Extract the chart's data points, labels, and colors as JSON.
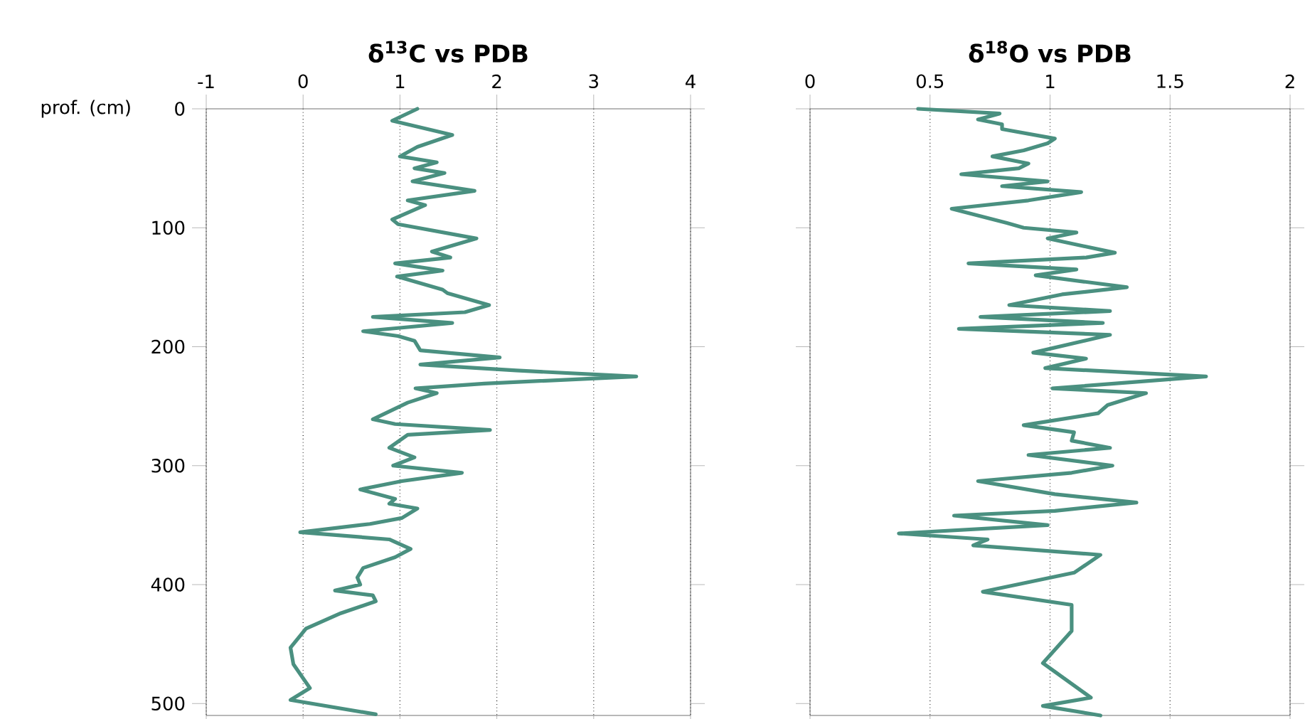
{
  "chart_data": [
    {
      "type": "line",
      "title": "δ$^{13}$C vs PDB",
      "ylabel": "prof. (cm)",
      "xlim": [
        -1,
        4
      ],
      "xticks": [
        -1,
        0,
        1,
        2,
        3,
        4
      ],
      "ylim": [
        510,
        0
      ],
      "yticks": [
        0,
        100,
        200,
        300,
        400,
        500
      ],
      "grid": "x",
      "series": [
        {
          "color": "#4a9080",
          "x": [
            1.18,
            0.92,
            1.54,
            1.18,
            1.0,
            1.38,
            1.15,
            1.46,
            1.13,
            1.77,
            1.08,
            1.26,
            0.92,
            0.98,
            1.79,
            1.33,
            1.52,
            0.95,
            1.44,
            0.97,
            1.44,
            1.49,
            1.92,
            1.67,
            0.72,
            1.54,
            1.02,
            0.62,
            0.98,
            1.15,
            1.21,
            2.03,
            1.21,
            2.2,
            3.44,
            1.87,
            1.16,
            1.38,
            1.08,
            0.72,
            0.95,
            1.93,
            1.08,
            0.89,
            1.15,
            0.93,
            1.64,
            1.02,
            0.59,
            0.95,
            0.89,
            1.18,
            1.02,
            0.69,
            -0.03,
            0.89,
            1.11,
            0.95,
            0.62,
            0.56,
            0.59,
            0.33,
            0.72,
            0.75,
            0.39,
            0.03,
            -0.13,
            -0.1,
            0.07,
            -0.13,
            0.75
          ],
          "values": [
            0,
            10,
            22,
            32,
            40,
            45,
            50,
            54,
            61,
            69,
            77,
            81,
            93,
            97,
            109,
            120,
            125,
            130,
            136,
            141,
            152,
            155,
            165,
            171,
            175,
            180,
            184,
            187,
            191,
            195,
            203,
            209,
            215,
            220,
            225,
            231,
            235,
            239,
            247,
            261,
            265,
            270,
            274,
            285,
            293,
            300,
            306,
            313,
            320,
            328,
            332,
            336,
            344,
            349,
            356,
            362,
            370,
            377,
            386,
            394,
            400,
            405,
            409,
            414,
            424,
            437,
            453,
            467,
            487,
            497,
            509
          ]
        }
      ]
    },
    {
      "type": "line",
      "title": "δ$^{18}$O vs PDB",
      "xlim": [
        0,
        2
      ],
      "xticks": [
        0,
        0.5,
        1,
        1.5,
        2
      ],
      "ylim": [
        510,
        0
      ],
      "yticks": [
        0,
        100,
        200,
        300,
        400,
        500
      ],
      "grid": "x",
      "tick_labels": "x",
      "series": [
        {
          "color": "#4a9080",
          "x": [
            0.45,
            0.79,
            0.7,
            0.8,
            0.8,
            1.02,
            0.99,
            0.89,
            0.76,
            0.91,
            0.87,
            0.63,
            0.99,
            0.8,
            1.13,
            0.91,
            0.59,
            0.82,
            0.89,
            1.11,
            0.99,
            1.27,
            1.15,
            0.66,
            1.11,
            0.94,
            1.32,
            1.05,
            0.83,
            1.25,
            0.71,
            1.22,
            0.62,
            1.25,
            1.1,
            0.93,
            1.15,
            0.98,
            1.65,
            1.01,
            1.4,
            1.24,
            1.2,
            0.89,
            1.1,
            1.09,
            1.25,
            0.91,
            1.26,
            1.09,
            0.7,
            1.02,
            1.36,
            1.02,
            0.6,
            0.99,
            0.37,
            0.74,
            0.68,
            1.21,
            1.1,
            0.72,
            1.09,
            1.09,
            0.97,
            1.17,
            0.97,
            1.21
          ],
          "values": [
            0,
            4,
            9,
            13,
            17,
            25,
            29,
            35,
            40,
            46,
            50,
            55,
            61,
            65,
            70,
            77,
            84,
            96,
            100,
            104,
            109,
            121,
            125,
            130,
            135,
            140,
            150,
            156,
            165,
            170,
            175,
            180,
            185,
            190,
            197,
            205,
            210,
            218,
            225,
            235,
            239,
            249,
            256,
            266,
            272,
            279,
            285,
            291,
            300,
            306,
            313,
            324,
            331,
            338,
            342,
            350,
            357,
            362,
            367,
            375,
            390,
            406,
            417,
            439,
            466,
            495,
            502,
            510
          ]
        }
      ]
    }
  ]
}
